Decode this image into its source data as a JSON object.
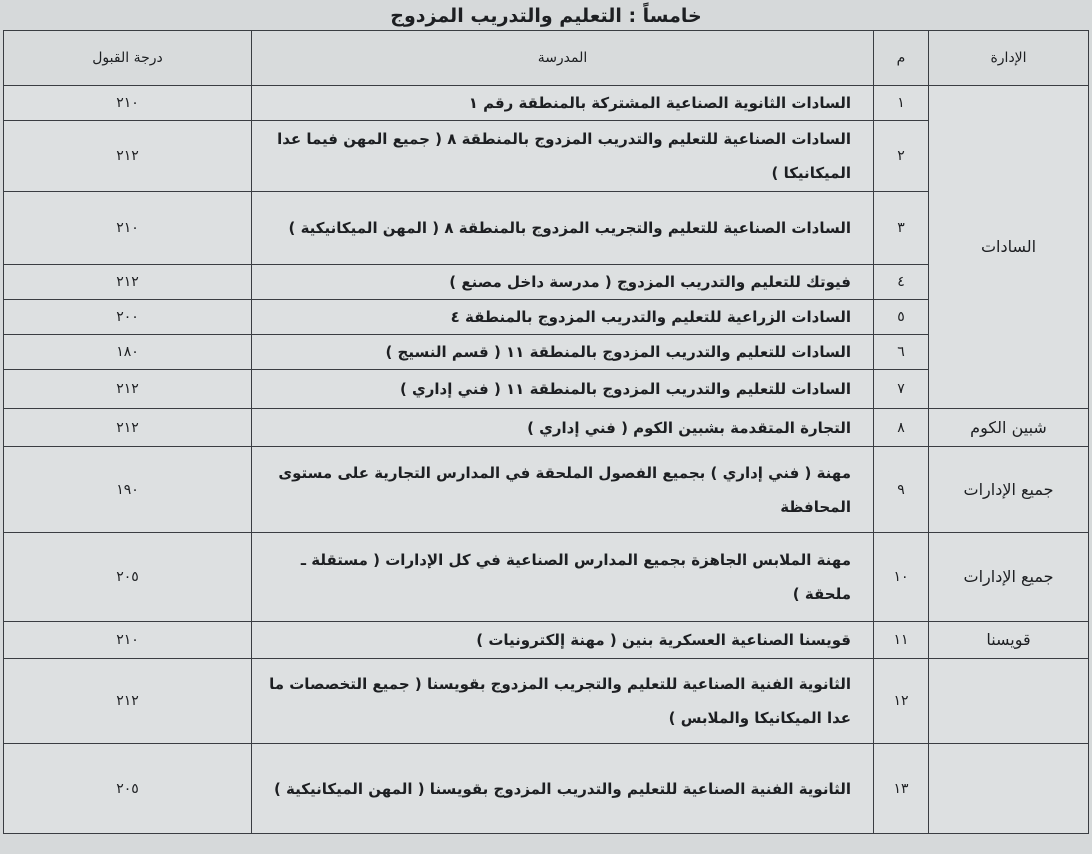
{
  "title": "خامساً : التعليم والتدريب المزدوج",
  "headers": {
    "admin": "الإدارة",
    "num": "م",
    "school": "المدرسة",
    "score": "درجة القبول"
  },
  "rows": [
    {
      "admin": "السادات",
      "num": "١",
      "school": "السادات الثانوية الصناعية المشتركة  بالمنطقة رقم ١",
      "score": "٢١٠"
    },
    {
      "num": "٢",
      "school": "السادات الصناعية للتعليم والتدريب المزدوج بالمنطقة ٨ ( جميع المهن فيما عدا الميكانيكا )",
      "score": "٢١٢"
    },
    {
      "num": "٣",
      "school": "السادات الصناعية للتعليم والتجريب المزدوج بالمنطقة ٨ ( المهن الميكانيكية )",
      "score": "٢١٠"
    },
    {
      "num": "٤",
      "school": "فيوتك للتعليم والتدريب المزدوج ( مدرسة داخل مصنع )",
      "score": "٢١٢"
    },
    {
      "num": "٥",
      "school": "السادات الزراعية للتعليم والتدريب المزدوج بالمنطقة ٤",
      "score": "٢٠٠"
    },
    {
      "num": "٦",
      "school": "السادات للتعليم والتدريب المزدوج بالمنطقة ١١ ( قسم النسيج )",
      "score": "١٨٠"
    },
    {
      "num": "٧",
      "school": "السادات للتعليم والتدريب المزدوج بالمنطقة ١١ ( فني إداري )",
      "score": "٢١٢"
    },
    {
      "admin": "شبين الكوم",
      "num": "٨",
      "school": "التجارة المتقدمة بشبين الكوم ( فني إداري )",
      "score": "٢١٢"
    },
    {
      "admin": "جميع الإدارات",
      "num": "٩",
      "school": "مهنة ( فني إداري ) بجميع الفصول الملحقة في المدارس التجارية على مستوى المحافظة",
      "score": "١٩٠"
    },
    {
      "admin": "جميع الإدارات",
      "num": "١٠",
      "school": "مهنة الملابس الجاهزة بجميع المدارس الصناعية في كل الإدارات ( مستقلة ـ ملحقة )",
      "score": "٢٠٥"
    },
    {
      "admin": "قويسنا",
      "num": "١١",
      "school": "قويسنا الصناعية العسكرية بنين ( مهنة إلكترونيات )",
      "score": "٢١٠"
    },
    {
      "admin": "",
      "num": "١٢",
      "school": "الثانوية الفنية الصناعية للتعليم والتجريب المزدوج بقويسنا ( جميع التخصصات ما عدا الميكانيكا والملابس )",
      "score": "٢١٢"
    },
    {
      "admin": "",
      "num": "١٣",
      "school": "الثانوية الفنية الصناعية للتعليم والتدريب المزدوج بقويسنا ( المهن الميكانيكية )",
      "score": "٢٠٥"
    }
  ]
}
